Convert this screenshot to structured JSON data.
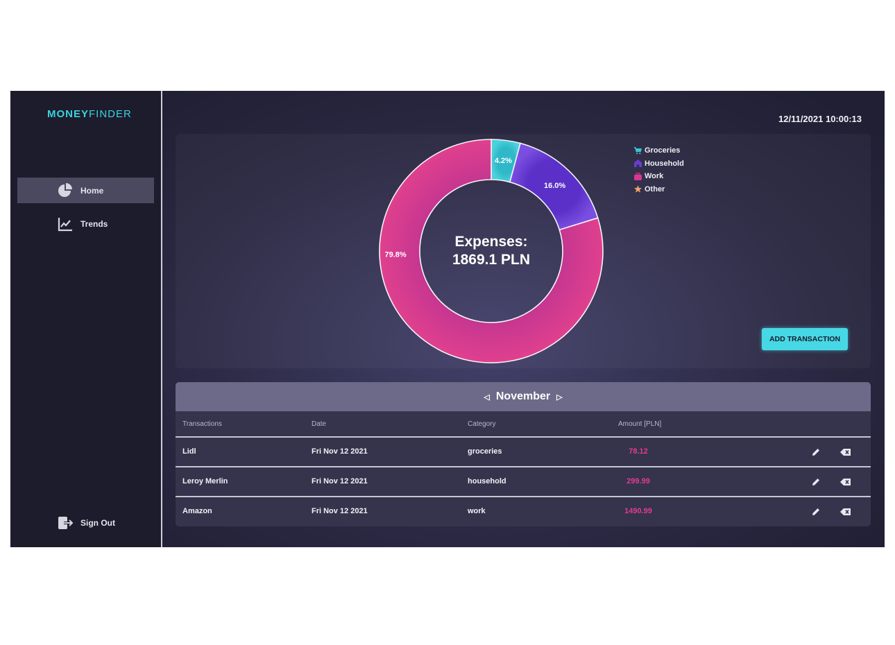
{
  "app": {
    "logo_bold": "MONEY",
    "logo_light": "FINDER"
  },
  "sidebar": {
    "items": [
      {
        "label": "Home",
        "icon": "pie-chart-icon",
        "active": true
      },
      {
        "label": "Trends",
        "icon": "line-chart-icon",
        "active": false
      }
    ],
    "signout": {
      "label": "Sign Out",
      "icon": "sign-out-icon"
    }
  },
  "header": {
    "datetime": "12/11/2021 10:00:13"
  },
  "chart": {
    "center_line1": "Expenses:",
    "center_line2": "1869.1 PLN",
    "add_button": "ADD TRANSACTION"
  },
  "chart_data": {
    "type": "pie",
    "donut": true,
    "categories": [
      "Groceries",
      "Household",
      "Work",
      "Other"
    ],
    "values": [
      4.2,
      16.0,
      79.8,
      0
    ],
    "labels": [
      "4.2%",
      "16.0%",
      "79.8%",
      ""
    ],
    "colors": [
      "#3ec2d0",
      "#6a3dd2",
      "#d8378f",
      "#f0a070"
    ],
    "legend_icons": [
      "cart-icon",
      "house-icon",
      "briefcase-icon",
      "star-icon"
    ],
    "legend_position": "top-right"
  },
  "table": {
    "month": "November",
    "headers": [
      "Transactions",
      "Date",
      "Category",
      "Amount [PLN]"
    ],
    "rows": [
      {
        "name": "Lidl",
        "date": "Fri Nov 12 2021",
        "category": "groceries",
        "amount": "78.12"
      },
      {
        "name": "Leroy Merlin",
        "date": "Fri Nov 12 2021",
        "category": "household",
        "amount": "299.99"
      },
      {
        "name": "Amazon",
        "date": "Fri Nov 12 2021",
        "category": "work",
        "amount": "1490.99"
      }
    ]
  }
}
